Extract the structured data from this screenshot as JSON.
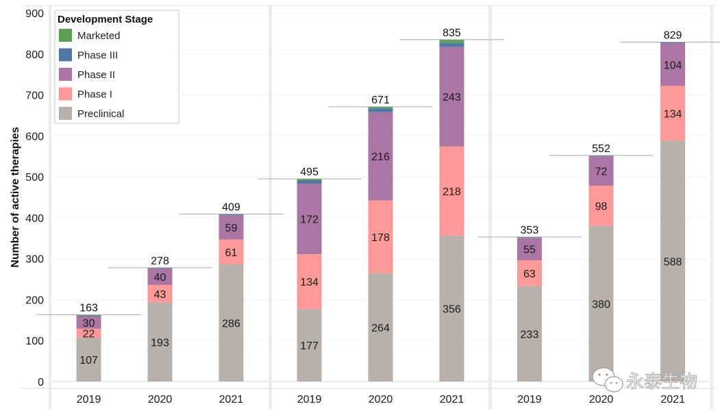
{
  "chart_data": {
    "type": "bar",
    "stacked": true,
    "title": "",
    "xlabel": "",
    "ylabel": "Number of active therapies",
    "ylim": [
      0,
      900
    ],
    "yticks": [
      0,
      100,
      200,
      300,
      400,
      500,
      600,
      700,
      800,
      900
    ],
    "grid": true,
    "legend": {
      "title": "Development Stage",
      "placement": "top-left",
      "entries": [
        "Marketed",
        "Phase III",
        "Phase II",
        "Phase I",
        "Preclinical"
      ]
    },
    "colors": {
      "Preclinical": "#b7b0ab",
      "Phase I": "#fd9a98",
      "Phase II": "#ab76a4",
      "Phase III": "#4f77aa",
      "Marketed": "#59a14f"
    },
    "stack_order": [
      "Preclinical",
      "Phase I",
      "Phase II",
      "Phase III",
      "Marketed"
    ],
    "panels": [
      {
        "categories": [
          "2019",
          "2020",
          "2021"
        ],
        "series": [
          {
            "name": "Preclinical",
            "values": [
              107,
              193,
              286
            ]
          },
          {
            "name": "Phase I",
            "values": [
              22,
              43,
              61
            ]
          },
          {
            "name": "Phase II",
            "values": [
              30,
              40,
              59
            ]
          },
          {
            "name": "Phase III",
            "values": [
              2,
              1,
              2
            ]
          },
          {
            "name": "Marketed",
            "values": [
              2,
              1,
              1
            ]
          }
        ],
        "totals": [
          163,
          278,
          409
        ]
      },
      {
        "categories": [
          "2019",
          "2020",
          "2021"
        ],
        "series": [
          {
            "name": "Preclinical",
            "values": [
              177,
              264,
              356
            ]
          },
          {
            "name": "Phase I",
            "values": [
              134,
              178,
              218
            ]
          },
          {
            "name": "Phase II",
            "values": [
              172,
              216,
              243
            ]
          },
          {
            "name": "Phase III",
            "values": [
              8,
              9,
              10
            ]
          },
          {
            "name": "Marketed",
            "values": [
              4,
              4,
              8
            ]
          }
        ],
        "totals": [
          495,
          671,
          835
        ]
      },
      {
        "categories": [
          "2019",
          "2020",
          "2021"
        ],
        "series": [
          {
            "name": "Preclinical",
            "values": [
              233,
              380,
              588
            ]
          },
          {
            "name": "Phase I",
            "values": [
              63,
              98,
              134
            ]
          },
          {
            "name": "Phase II",
            "values": [
              55,
              72,
              104
            ]
          },
          {
            "name": "Phase III",
            "values": [
              2,
              2,
              3
            ]
          },
          {
            "name": "Marketed",
            "values": [
              0,
              0,
              0
            ]
          }
        ],
        "totals": [
          353,
          552,
          829
        ]
      }
    ],
    "labeled_series": [
      "Preclinical",
      "Phase I",
      "Phase II"
    ]
  },
  "watermark": {
    "icon": "wechat-icon",
    "text": "永泰生物"
  }
}
